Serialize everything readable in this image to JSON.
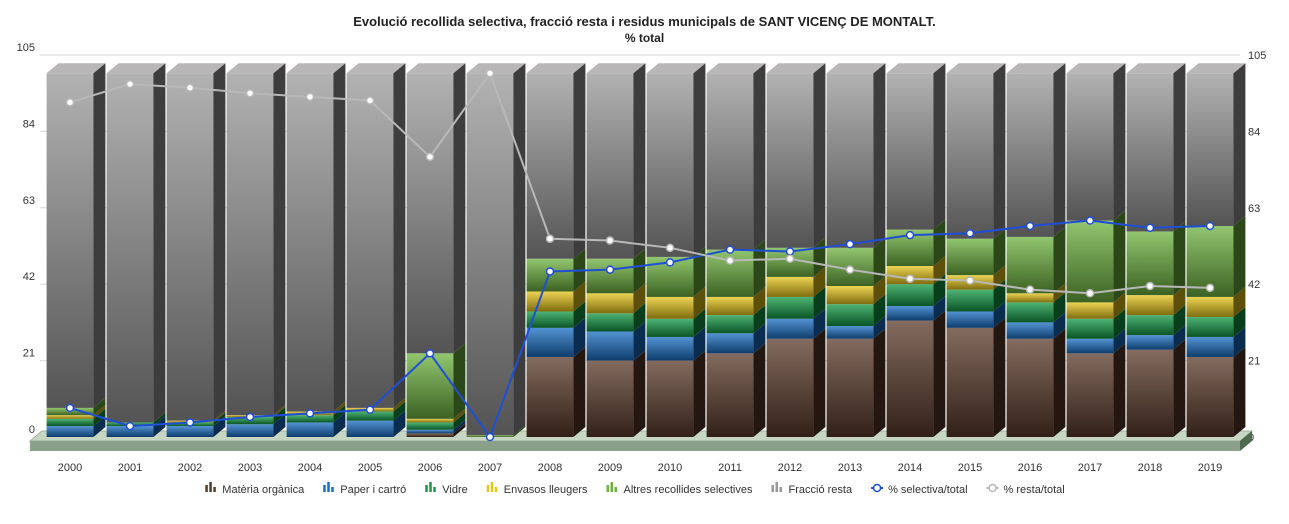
{
  "chart_data": {
    "type": "bar",
    "stacked": true,
    "style": "3d",
    "title": "Evolució recollida selectiva, fracció resta i residus municipals de SANT VICENÇ DE MONTALT.",
    "subtitle": "% total",
    "ylim": [
      0,
      105
    ],
    "yticks": [
      "0",
      "21",
      "42",
      "63",
      "84",
      "105"
    ],
    "grid": true,
    "legend_position": "bottom",
    "categories": [
      "2000",
      "2001",
      "2002",
      "2003",
      "2004",
      "2005",
      "2006",
      "2007",
      "2008",
      "2009",
      "2010",
      "2011",
      "2012",
      "2013",
      "2014",
      "2015",
      "2016",
      "2017",
      "2018",
      "2019"
    ],
    "series": [
      {
        "name": "Matèria orgànica",
        "kind": "bar",
        "color": "#5a3a2a",
        "values": [
          0,
          0,
          0,
          0,
          0,
          0,
          1,
          0,
          22,
          21,
          21,
          23,
          27,
          27,
          32,
          30,
          27,
          23,
          24,
          22
        ]
      },
      {
        "name": "Paper i cartró",
        "kind": "bar",
        "color": "#1a6fc4",
        "values": [
          3,
          3,
          3,
          3.5,
          4,
          4.5,
          1,
          0,
          8,
          8,
          6.5,
          5.5,
          5.5,
          3.5,
          4,
          4.5,
          4.5,
          4,
          4,
          5.5
        ]
      },
      {
        "name": "Vidre",
        "kind": "bar",
        "color": "#139a45",
        "values": [
          2,
          1,
          1,
          2,
          2,
          2.5,
          2,
          0,
          4.5,
          5,
          5,
          5,
          6,
          6,
          6,
          6,
          5.5,
          5.5,
          5.5,
          5.5
        ]
      },
      {
        "name": "Envasos lleugers",
        "kind": "bar",
        "color": "#e6c619",
        "values": [
          1,
          0,
          0.5,
          0.5,
          1,
          1,
          1,
          0,
          5.5,
          5.5,
          6,
          5,
          5.5,
          5,
          5,
          4,
          2.5,
          4.5,
          5.5,
          5.5
        ]
      },
      {
        "name": "Altres recollides selectives",
        "kind": "bar",
        "color": "#6db33f",
        "values": [
          2,
          0,
          0,
          0,
          0,
          0,
          18,
          0.5,
          9,
          9.5,
          11,
          13,
          8,
          10.5,
          10,
          10,
          15.5,
          22.5,
          17.5,
          19.5
        ]
      },
      {
        "name": "Fracció resta",
        "kind": "bar",
        "color": "#9a9898",
        "values": [
          92,
          96,
          95.5,
          94,
          93,
          92,
          77,
          99.5,
          51,
          51,
          50.5,
          48.5,
          48,
          48,
          43,
          45.5,
          45,
          40.5,
          43.5,
          42
        ]
      },
      {
        "name": "% selectiva/total",
        "kind": "line",
        "color": "#1f4fd6",
        "values": [
          8,
          3,
          4,
          5.5,
          6.5,
          7.5,
          23,
          0,
          45.5,
          46,
          48,
          51.5,
          51,
          53,
          55.5,
          56,
          58,
          59.5,
          57.5,
          58
        ]
      },
      {
        "name": "% resta/total",
        "kind": "line",
        "color": "#b8b8b8",
        "values": [
          92,
          97,
          96,
          94.5,
          93.5,
          92.5,
          77,
          100,
          54.5,
          54,
          52,
          48.5,
          49,
          46,
          43.5,
          43,
          40.5,
          39.5,
          41.5,
          41
        ]
      }
    ]
  }
}
